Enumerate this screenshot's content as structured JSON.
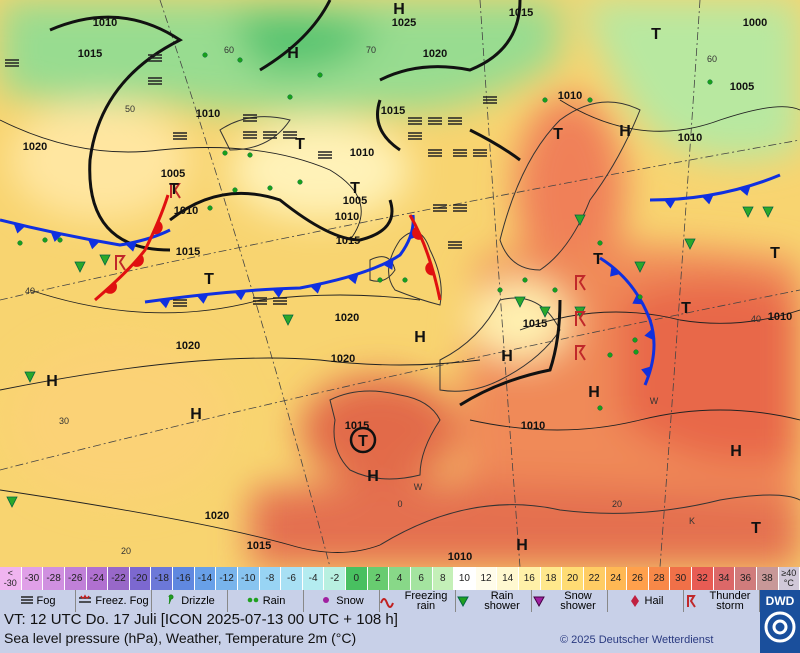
{
  "map": {
    "isobar_labels": [
      "1010",
      "1015",
      "1025",
      "1015",
      "1000",
      "1020",
      "1005",
      "1010",
      "1010",
      "1015",
      "1010",
      "1020",
      "1010",
      "1005",
      "1010",
      "1005",
      "1010",
      "1015",
      "1015",
      "1020",
      "1015",
      "1010",
      "1020",
      "1020",
      "1015",
      "1010",
      "1020",
      "1015",
      "1010"
    ],
    "pressure_centers": [
      "H",
      "H",
      "T",
      "T",
      "H",
      "T",
      "T",
      "T",
      "T",
      "H",
      "H",
      "T",
      "T",
      "H",
      "H",
      "H",
      "T",
      "H",
      "H",
      "H",
      "T",
      "T"
    ],
    "temperature_labels": [
      "60",
      "70",
      "60",
      "50",
      "40",
      "40",
      "30",
      "20",
      "20",
      "0",
      "W",
      "W",
      "K"
    ]
  },
  "temperature_scale": [
    {
      "top": "<",
      "bottom": "-30",
      "color": "#f0b4f0"
    },
    {
      "label": "-30",
      "color": "#e0a0e8"
    },
    {
      "label": "-28",
      "color": "#d090e0"
    },
    {
      "label": "-26",
      "color": "#c080d8"
    },
    {
      "label": "-24",
      "color": "#b070d0"
    },
    {
      "label": "-22",
      "color": "#9868c8"
    },
    {
      "label": "-20",
      "color": "#7c68d0"
    },
    {
      "label": "-18",
      "color": "#6c78d8"
    },
    {
      "label": "-16",
      "color": "#6088e0"
    },
    {
      "label": "-14",
      "color": "#68a0e8"
    },
    {
      "label": "-12",
      "color": "#78b4ec"
    },
    {
      "label": "-10",
      "color": "#88c4f0"
    },
    {
      "label": "-8",
      "color": "#98d4f4"
    },
    {
      "label": "-6",
      "color": "#a8e0f4"
    },
    {
      "label": "-4",
      "color": "#b4ecf0"
    },
    {
      "label": "-2",
      "color": "#b8f0e0"
    },
    {
      "label": "0",
      "color": "#48c060"
    },
    {
      "label": "2",
      "color": "#68cc70"
    },
    {
      "label": "4",
      "color": "#88d888"
    },
    {
      "label": "6",
      "color": "#a4e4a0"
    },
    {
      "label": "8",
      "color": "#c4f0b8"
    },
    {
      "label": "10",
      "color": "#ffffff"
    },
    {
      "label": "12",
      "color": "#fffcea"
    },
    {
      "label": "14",
      "color": "#fff8d0"
    },
    {
      "label": "16",
      "color": "#fff0a8"
    },
    {
      "label": "18",
      "color": "#ffe88c"
    },
    {
      "label": "20",
      "color": "#ffdc74"
    },
    {
      "label": "22",
      "color": "#ffcc64"
    },
    {
      "label": "24",
      "color": "#ffb854"
    },
    {
      "label": "26",
      "color": "#ffa04c"
    },
    {
      "label": "28",
      "color": "#f88848"
    },
    {
      "label": "30",
      "color": "#f07048"
    },
    {
      "label": "32",
      "color": "#e85c54"
    },
    {
      "label": "34",
      "color": "#dc6868"
    },
    {
      "label": "36",
      "color": "#d07c7c"
    },
    {
      "label": "38",
      "color": "#c89898"
    },
    {
      "top": "≥40",
      "bottom": "°C",
      "color": "#d0c8d8"
    }
  ],
  "weather_legend": [
    "Fog",
    "Freez. Fog",
    "Drizzle",
    "Rain",
    "Snow",
    "Freezing rain",
    "Rain shower",
    "Snow shower",
    "Hail",
    "Thunder storm"
  ],
  "footer": {
    "valid_time": "VT: 12 UTC Do.  17 Juli [ICON 2025-07-13  00 UTC + 108 h]",
    "description": "Sea level pressure (hPa), Weather, Temperature 2m (°C)",
    "copyright": "© 2025 Deutscher Wetterdienst",
    "logo": "DWD"
  }
}
